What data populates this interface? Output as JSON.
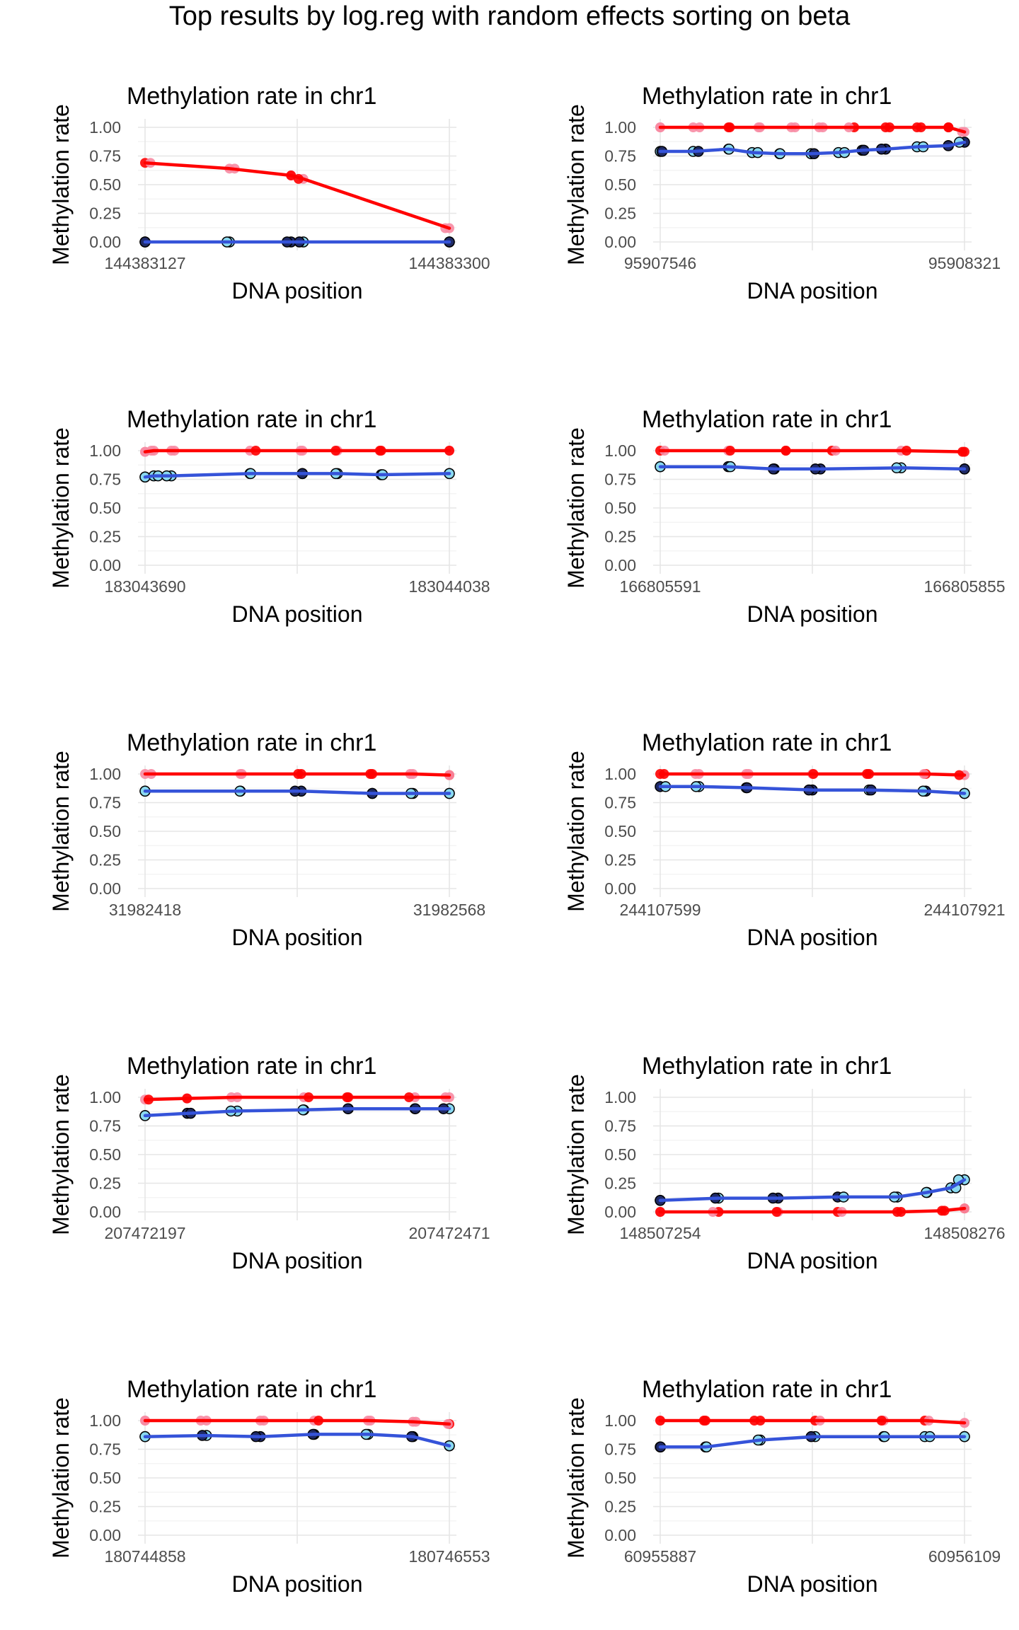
{
  "page": {
    "title": "Top results by log.reg with random effects sorting on beta"
  },
  "colors": {
    "red_line": "#ff0000",
    "red_point": "#ff0000",
    "pink_point": "#f78ba3",
    "blue_line": "#3553d9",
    "navy_point": "#1f2a66",
    "light_blue_point": "#8ad9f0",
    "grid": "#e6e6e6"
  },
  "chart_data": [
    {
      "type": "line",
      "title": "Methylation rate in chr1",
      "xlabel": "DNA position",
      "ylabel": "Methylation rate",
      "xlim": [
        144383127,
        144383300
      ],
      "ylim": [
        0,
        1
      ],
      "x_ticks": [
        "144383127",
        "144383300"
      ],
      "y_ticks": [
        "0.00",
        "0.25",
        "0.50",
        "0.75",
        "1.00"
      ],
      "series": [
        {
          "color": "red",
          "values": [
            [
              144383127,
              0.69
            ],
            [
              144383175,
              0.64
            ],
            [
              144383210,
              0.58
            ],
            [
              144383217,
              0.55
            ],
            [
              144383300,
              0.12
            ]
          ]
        },
        {
          "color": "blue",
          "values": [
            [
              144383127,
              0.0
            ],
            [
              144383175,
              0.0
            ],
            [
              144383210,
              0.0
            ],
            [
              144383217,
              0.0
            ],
            [
              144383300,
              0.0
            ]
          ]
        }
      ]
    },
    {
      "type": "line",
      "title": "Methylation rate in chr1",
      "xlabel": "DNA position",
      "ylabel": "Methylation rate",
      "xlim": [
        95907546,
        95908321
      ],
      "ylim": [
        0,
        1
      ],
      "x_ticks": [
        "95907546",
        "95908321"
      ],
      "y_ticks": [
        "0.00",
        "0.25",
        "0.50",
        "0.75",
        "1.00"
      ],
      "series": [
        {
          "color": "red",
          "values": [
            [
              95907546,
              1.0
            ],
            [
              95907630,
              1.0
            ],
            [
              95907720,
              1.0
            ],
            [
              95907800,
              1.0
            ],
            [
              95907880,
              1.0
            ],
            [
              95907960,
              1.0
            ],
            [
              95908040,
              1.0
            ],
            [
              95908120,
              1.0
            ],
            [
              95908200,
              1.0
            ],
            [
              95908280,
              1.0
            ],
            [
              95908321,
              0.96
            ]
          ]
        },
        {
          "color": "blue",
          "values": [
            [
              95907546,
              0.79
            ],
            [
              95907630,
              0.79
            ],
            [
              95907720,
              0.81
            ],
            [
              95907780,
              0.78
            ],
            [
              95907850,
              0.77
            ],
            [
              95907930,
              0.77
            ],
            [
              95908000,
              0.78
            ],
            [
              95908060,
              0.8
            ],
            [
              95908120,
              0.81
            ],
            [
              95908200,
              0.83
            ],
            [
              95908280,
              0.84
            ],
            [
              95908321,
              0.87
            ]
          ]
        }
      ]
    },
    {
      "type": "line",
      "title": "Methylation rate in chr1",
      "xlabel": "DNA position",
      "ylabel": "Methylation rate",
      "xlim": [
        183043690,
        183044038
      ],
      "ylim": [
        0,
        1
      ],
      "x_ticks": [
        "183043690",
        "183044038"
      ],
      "y_ticks": [
        "0.00",
        "0.25",
        "0.50",
        "0.75",
        "1.00"
      ],
      "series": [
        {
          "color": "red",
          "values": [
            [
              183043690,
              0.99
            ],
            [
              183043700,
              1.0
            ],
            [
              183043720,
              1.0
            ],
            [
              183043810,
              1.0
            ],
            [
              183043870,
              1.0
            ],
            [
              183043910,
              1.0
            ],
            [
              183043960,
              1.0
            ],
            [
              183044038,
              1.0
            ]
          ]
        },
        {
          "color": "blue",
          "values": [
            [
              183043690,
              0.77
            ],
            [
              183043700,
              0.78
            ],
            [
              183043720,
              0.78
            ],
            [
              183043810,
              0.8
            ],
            [
              183043870,
              0.8
            ],
            [
              183043910,
              0.8
            ],
            [
              183043960,
              0.79
            ],
            [
              183044038,
              0.8
            ]
          ]
        }
      ]
    },
    {
      "type": "line",
      "title": "Methylation rate in chr1",
      "xlabel": "DNA position",
      "ylabel": "Methylation rate",
      "xlim": [
        166805591,
        166805855
      ],
      "ylim": [
        0,
        1
      ],
      "x_ticks": [
        "166805591",
        "166805855"
      ],
      "y_ticks": [
        "0.00",
        "0.25",
        "0.50",
        "0.75",
        "1.00"
      ],
      "series": [
        {
          "color": "red",
          "values": [
            [
              166805591,
              1.0
            ],
            [
              166805650,
              1.0
            ],
            [
              166805700,
              1.0
            ],
            [
              166805740,
              1.0
            ],
            [
              166805800,
              1.0
            ],
            [
              166805855,
              0.99
            ]
          ]
        },
        {
          "color": "blue",
          "values": [
            [
              166805591,
              0.86
            ],
            [
              166805650,
              0.86
            ],
            [
              166805690,
              0.84
            ],
            [
              166805730,
              0.84
            ],
            [
              166805800,
              0.85
            ],
            [
              166805855,
              0.84
            ]
          ]
        }
      ]
    },
    {
      "type": "line",
      "title": "Methylation rate in chr1",
      "xlabel": "DNA position",
      "ylabel": "Methylation rate",
      "xlim": [
        31982418,
        31982568
      ],
      "ylim": [
        0,
        1
      ],
      "x_ticks": [
        "31982418",
        "31982568"
      ],
      "y_ticks": [
        "0.00",
        "0.25",
        "0.50",
        "0.75",
        "1.00"
      ],
      "series": [
        {
          "color": "red",
          "values": [
            [
              31982418,
              1.0
            ],
            [
              31982465,
              1.0
            ],
            [
              31982495,
              1.0
            ],
            [
              31982530,
              1.0
            ],
            [
              31982550,
              1.0
            ],
            [
              31982568,
              0.99
            ]
          ]
        },
        {
          "color": "blue",
          "values": [
            [
              31982418,
              0.85
            ],
            [
              31982465,
              0.85
            ],
            [
              31982495,
              0.85
            ],
            [
              31982530,
              0.83
            ],
            [
              31982550,
              0.83
            ],
            [
              31982568,
              0.83
            ]
          ]
        }
      ]
    },
    {
      "type": "line",
      "title": "Methylation rate in chr1",
      "xlabel": "DNA position",
      "ylabel": "Methylation rate",
      "xlim": [
        244107599,
        244107921
      ],
      "ylim": [
        0,
        1
      ],
      "x_ticks": [
        "244107599",
        "244107921"
      ],
      "y_ticks": [
        "0.00",
        "0.25",
        "0.50",
        "0.75",
        "1.00"
      ],
      "series": [
        {
          "color": "red",
          "values": [
            [
              244107599,
              1.0
            ],
            [
              244107640,
              1.0
            ],
            [
              244107690,
              1.0
            ],
            [
              244107760,
              1.0
            ],
            [
              244107820,
              1.0
            ],
            [
              244107880,
              1.0
            ],
            [
              244107921,
              0.99
            ]
          ]
        },
        {
          "color": "blue",
          "values": [
            [
              244107599,
              0.89
            ],
            [
              244107640,
              0.89
            ],
            [
              244107690,
              0.88
            ],
            [
              244107760,
              0.86
            ],
            [
              244107820,
              0.86
            ],
            [
              244107880,
              0.85
            ],
            [
              244107921,
              0.83
            ]
          ]
        }
      ]
    },
    {
      "type": "line",
      "title": "Methylation rate in chr1",
      "xlabel": "DNA position",
      "ylabel": "Methylation rate",
      "xlim": [
        207472197,
        207472471
      ],
      "ylim": [
        0,
        1
      ],
      "x_ticks": [
        "207472197",
        "207472471"
      ],
      "y_ticks": [
        "0.00",
        "0.25",
        "0.50",
        "0.75",
        "1.00"
      ],
      "series": [
        {
          "color": "red",
          "values": [
            [
              207472197,
              0.98
            ],
            [
              207472235,
              0.99
            ],
            [
              207472280,
              1.0
            ],
            [
              207472340,
              1.0
            ],
            [
              207472380,
              1.0
            ],
            [
              207472440,
              1.0
            ],
            [
              207472471,
              1.0
            ]
          ]
        },
        {
          "color": "blue",
          "values": [
            [
              207472197,
              0.84
            ],
            [
              207472235,
              0.86
            ],
            [
              207472280,
              0.88
            ],
            [
              207472340,
              0.89
            ],
            [
              207472380,
              0.9
            ],
            [
              207472440,
              0.9
            ],
            [
              207472471,
              0.9
            ]
          ]
        }
      ]
    },
    {
      "type": "line",
      "title": "Methylation rate in chr1",
      "xlabel": "DNA position",
      "ylabel": "Methylation rate",
      "xlim": [
        148507254,
        148508276
      ],
      "ylim": [
        0,
        1
      ],
      "x_ticks": [
        "148507254",
        "148508276"
      ],
      "y_ticks": [
        "0.00",
        "0.25",
        "0.50",
        "0.75",
        "1.00"
      ],
      "series": [
        {
          "color": "red",
          "values": [
            [
              148507254,
              0.0
            ],
            [
              148507450,
              0.0
            ],
            [
              148507650,
              0.0
            ],
            [
              148507850,
              0.0
            ],
            [
              148508050,
              0.0
            ],
            [
              148508200,
              0.01
            ],
            [
              148508276,
              0.03
            ]
          ]
        },
        {
          "color": "blue",
          "values": [
            [
              148507254,
              0.1
            ],
            [
              148507450,
              0.12
            ],
            [
              148507650,
              0.12
            ],
            [
              148507850,
              0.13
            ],
            [
              148508050,
              0.13
            ],
            [
              148508150,
              0.17
            ],
            [
              148508230,
              0.21
            ],
            [
              148508276,
              0.28
            ]
          ]
        }
      ]
    },
    {
      "type": "line",
      "title": "Methylation rate in chr1",
      "xlabel": "DNA position",
      "ylabel": "Methylation rate",
      "xlim": [
        180744858,
        180746553
      ],
      "ylim": [
        0,
        1
      ],
      "x_ticks": [
        "180744858",
        "180746553"
      ],
      "y_ticks": [
        "0.00",
        "0.25",
        "0.50",
        "0.75",
        "1.00"
      ],
      "series": [
        {
          "color": "red",
          "values": [
            [
              180744858,
              1.0
            ],
            [
              180745200,
              1.0
            ],
            [
              180745500,
              1.0
            ],
            [
              180745800,
              1.0
            ],
            [
              180746100,
              1.0
            ],
            [
              180746350,
              0.99
            ],
            [
              180746553,
              0.97
            ]
          ]
        },
        {
          "color": "blue",
          "values": [
            [
              180744858,
              0.86
            ],
            [
              180745200,
              0.87
            ],
            [
              180745500,
              0.86
            ],
            [
              180745800,
              0.88
            ],
            [
              180746100,
              0.88
            ],
            [
              180746350,
              0.86
            ],
            [
              180746553,
              0.78
            ]
          ]
        }
      ]
    },
    {
      "type": "line",
      "title": "Methylation rate in chr1",
      "xlabel": "DNA position",
      "ylabel": "Methylation rate",
      "xlim": [
        60955887,
        60956109
      ],
      "ylim": [
        0,
        1
      ],
      "x_ticks": [
        "60955887",
        "60956109"
      ],
      "y_ticks": [
        "0.00",
        "0.25",
        "0.50",
        "0.75",
        "1.00"
      ],
      "series": [
        {
          "color": "red",
          "values": [
            [
              60955887,
              1.0
            ],
            [
              60955920,
              1.0
            ],
            [
              60955960,
              1.0
            ],
            [
              60956000,
              1.0
            ],
            [
              60956050,
              1.0
            ],
            [
              60956080,
              1.0
            ],
            [
              60956109,
              0.98
            ]
          ]
        },
        {
          "color": "blue",
          "values": [
            [
              60955887,
              0.77
            ],
            [
              60955920,
              0.77
            ],
            [
              60955960,
              0.83
            ],
            [
              60956000,
              0.86
            ],
            [
              60956050,
              0.86
            ],
            [
              60956080,
              0.86
            ],
            [
              60956109,
              0.86
            ]
          ]
        }
      ]
    }
  ]
}
